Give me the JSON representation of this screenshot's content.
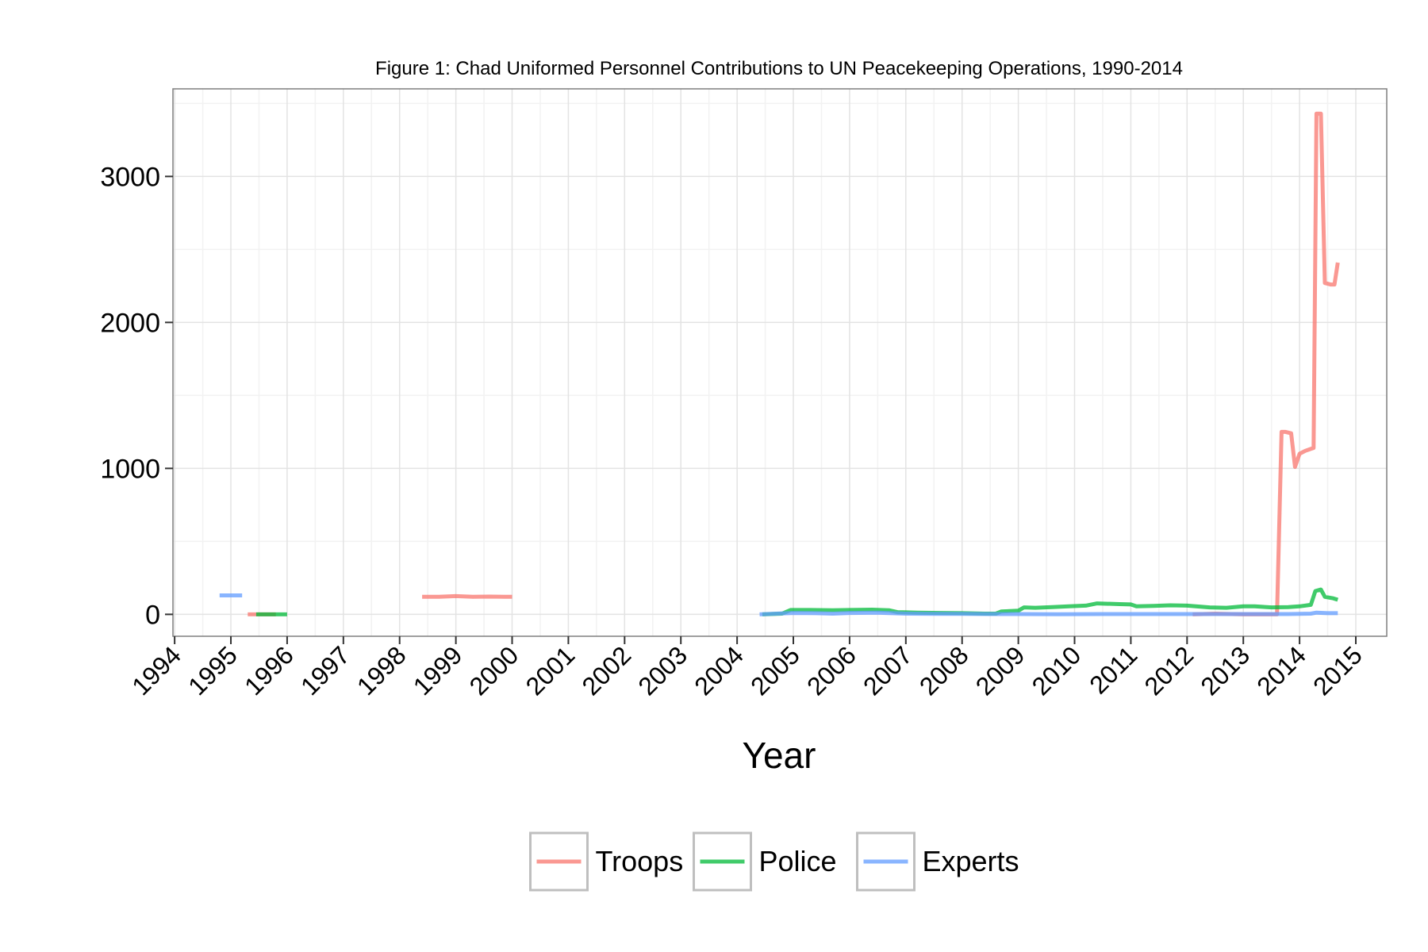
{
  "chart_data": {
    "type": "line",
    "title": "Figure 1: Chad Uniformed Personnel Contributions to UN Peacekeeping Operations, 1990-2014",
    "xlabel": "Year",
    "ylabel": "",
    "xlim": [
      1993.97,
      2015.55
    ],
    "ylim": [
      -150,
      3600
    ],
    "x_ticks": [
      "1994",
      "1995",
      "1996",
      "1997",
      "1998",
      "1999",
      "2000",
      "2001",
      "2002",
      "2003",
      "2004",
      "2005",
      "2006",
      "2007",
      "2008",
      "2009",
      "2010",
      "2011",
      "2012",
      "2013",
      "2014",
      "2015"
    ],
    "y_ticks": [
      0,
      1000,
      2000,
      3000
    ],
    "grid": true,
    "legend_position": "bottom",
    "series": [
      {
        "name": "Troops",
        "color": "#F8766D",
        "segments": [
          [
            [
              1995.3,
              0
            ],
            [
              1995.8,
              0
            ]
          ],
          [
            [
              1998.4,
              120
            ],
            [
              1998.7,
              120
            ],
            [
              1999.0,
              125
            ],
            [
              1999.3,
              120
            ],
            [
              1999.6,
              122
            ],
            [
              2000.0,
              120
            ]
          ],
          [
            [
              2012.1,
              0
            ],
            [
              2012.5,
              5
            ],
            [
              2013.0,
              0
            ],
            [
              2013.5,
              0
            ],
            [
              2013.6,
              0
            ],
            [
              2013.68,
              1250
            ],
            [
              2013.75,
              1250
            ],
            [
              2013.85,
              1240
            ],
            [
              2013.92,
              1010
            ],
            [
              2014.0,
              1100
            ],
            [
              2014.1,
              1120
            ],
            [
              2014.25,
              1140
            ],
            [
              2014.3,
              3430
            ],
            [
              2014.38,
              3430
            ],
            [
              2014.45,
              2270
            ],
            [
              2014.55,
              2260
            ],
            [
              2014.62,
              2260
            ],
            [
              2014.68,
              2410
            ]
          ]
        ]
      },
      {
        "name": "Police",
        "color": "#00BA38",
        "segments": [
          [
            [
              1995.45,
              0
            ],
            [
              1996.0,
              0
            ]
          ],
          [
            [
              2004.45,
              0
            ],
            [
              2004.8,
              5
            ],
            [
              2004.95,
              30
            ],
            [
              2005.3,
              30
            ],
            [
              2005.7,
              28
            ],
            [
              2006.0,
              30
            ],
            [
              2006.4,
              32
            ],
            [
              2006.7,
              28
            ],
            [
              2006.85,
              15
            ],
            [
              2007.2,
              12
            ],
            [
              2007.6,
              10
            ],
            [
              2008.0,
              8
            ],
            [
              2008.4,
              5
            ],
            [
              2008.6,
              5
            ],
            [
              2008.7,
              20
            ],
            [
              2009.0,
              25
            ],
            [
              2009.1,
              48
            ],
            [
              2009.3,
              45
            ],
            [
              2009.6,
              50
            ],
            [
              2009.9,
              55
            ],
            [
              2010.2,
              60
            ],
            [
              2010.4,
              75
            ],
            [
              2010.8,
              70
            ],
            [
              2011.0,
              68
            ],
            [
              2011.1,
              55
            ],
            [
              2011.4,
              58
            ],
            [
              2011.7,
              62
            ],
            [
              2012.0,
              60
            ],
            [
              2012.4,
              48
            ],
            [
              2012.7,
              45
            ],
            [
              2013.0,
              55
            ],
            [
              2013.2,
              55
            ],
            [
              2013.5,
              48
            ],
            [
              2013.8,
              50
            ],
            [
              2014.0,
              55
            ],
            [
              2014.2,
              65
            ],
            [
              2014.28,
              160
            ],
            [
              2014.38,
              170
            ],
            [
              2014.45,
              120
            ],
            [
              2014.6,
              110
            ],
            [
              2014.68,
              100
            ]
          ]
        ]
      },
      {
        "name": "Experts",
        "color": "#619CFF",
        "segments": [
          [
            [
              1994.8,
              130
            ],
            [
              1995.2,
              130
            ]
          ],
          [
            [
              2004.4,
              0
            ],
            [
              2004.7,
              5
            ],
            [
              2005.0,
              10
            ],
            [
              2005.4,
              8
            ],
            [
              2005.7,
              5
            ],
            [
              2006.0,
              10
            ],
            [
              2006.5,
              12
            ],
            [
              2007.0,
              5
            ],
            [
              2007.5,
              3
            ],
            [
              2008.0,
              3
            ],
            [
              2008.5,
              2
            ],
            [
              2009.0,
              2
            ],
            [
              2009.7,
              1
            ],
            [
              2010.5,
              2
            ],
            [
              2011.0,
              2
            ],
            [
              2012.0,
              2
            ],
            [
              2013.0,
              2
            ],
            [
              2013.8,
              2
            ],
            [
              2014.2,
              5
            ],
            [
              2014.3,
              12
            ],
            [
              2014.5,
              8
            ],
            [
              2014.68,
              8
            ]
          ]
        ]
      }
    ]
  }
}
